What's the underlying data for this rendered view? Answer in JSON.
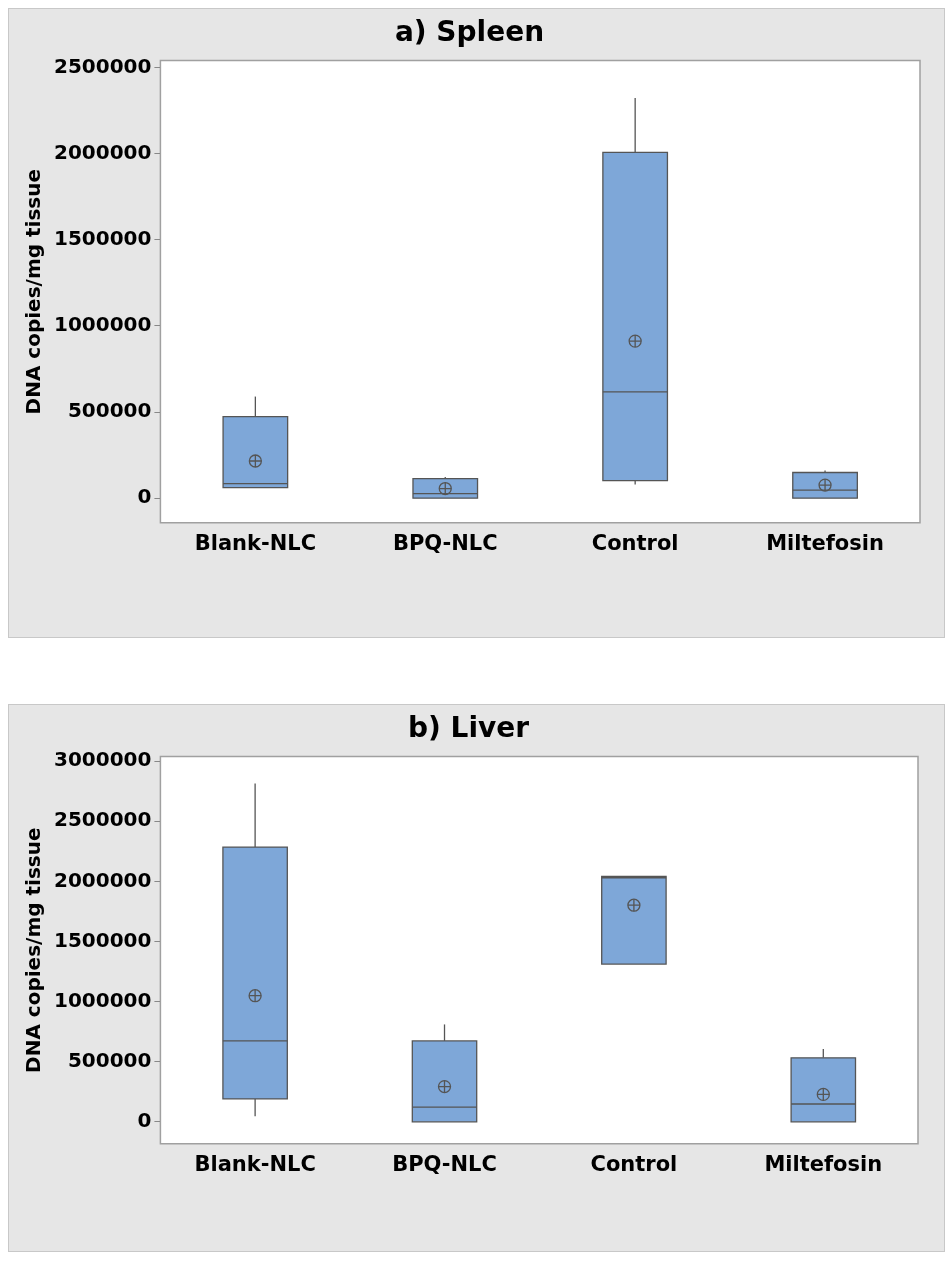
{
  "chart_data": [
    {
      "type": "box",
      "title": "a) Spleen",
      "ylabel": "DNA copies/mg tissue",
      "categories": [
        "Blank-NLC",
        "BPQ-NLC",
        "Control",
        "Miltefosin"
      ],
      "color": "#7ea7d8",
      "boxes": [
        {
          "low": 61000,
          "q1": 61000,
          "median": 85000,
          "q3": 474000,
          "high": 590000,
          "mean": 216000
        },
        {
          "low": 0,
          "q1": 0,
          "median": 26000,
          "q3": 114000,
          "high": 123000,
          "mean": 56000
        },
        {
          "low": 79000,
          "q1": 102000,
          "median": 617000,
          "q3": 2008000,
          "high": 2324000,
          "mean": 912000
        },
        {
          "low": 0,
          "q1": 0,
          "median": 47000,
          "q3": 149000,
          "high": 161000,
          "mean": 76000
        }
      ],
      "ylim": [
        -143000,
        2541000
      ],
      "yticks": [
        0,
        500000,
        1000000,
        1500000,
        2000000,
        2500000
      ],
      "grid": false,
      "legend": false
    },
    {
      "type": "box",
      "title": "b) Liver",
      "ylabel": "DNA copies/mg tissue",
      "categories": [
        "Blank-NLC",
        "BPQ-NLC",
        "Control",
        "Miltefosin"
      ],
      "color": "#7ea7d8",
      "boxes": [
        {
          "low": 46000,
          "q1": 190000,
          "median": 673000,
          "q3": 2285000,
          "high": 2814000,
          "mean": 1049000
        },
        {
          "low": 0,
          "q1": 0,
          "median": 122000,
          "q3": 673000,
          "high": 810000,
          "mean": 293000
        },
        {
          "low": 1312000,
          "q1": 1312000,
          "median": 2030000,
          "q3": 2042000,
          "high": 2042000,
          "mean": 1802000
        },
        {
          "low": 0,
          "q1": 0,
          "median": 148000,
          "q3": 532000,
          "high": 605000,
          "mean": 228000
        }
      ],
      "ylim": [
        -183000,
        3038000
      ],
      "yticks": [
        0,
        500000,
        1000000,
        1500000,
        2000000,
        2500000,
        3000000
      ],
      "grid": false,
      "legend": false
    }
  ]
}
